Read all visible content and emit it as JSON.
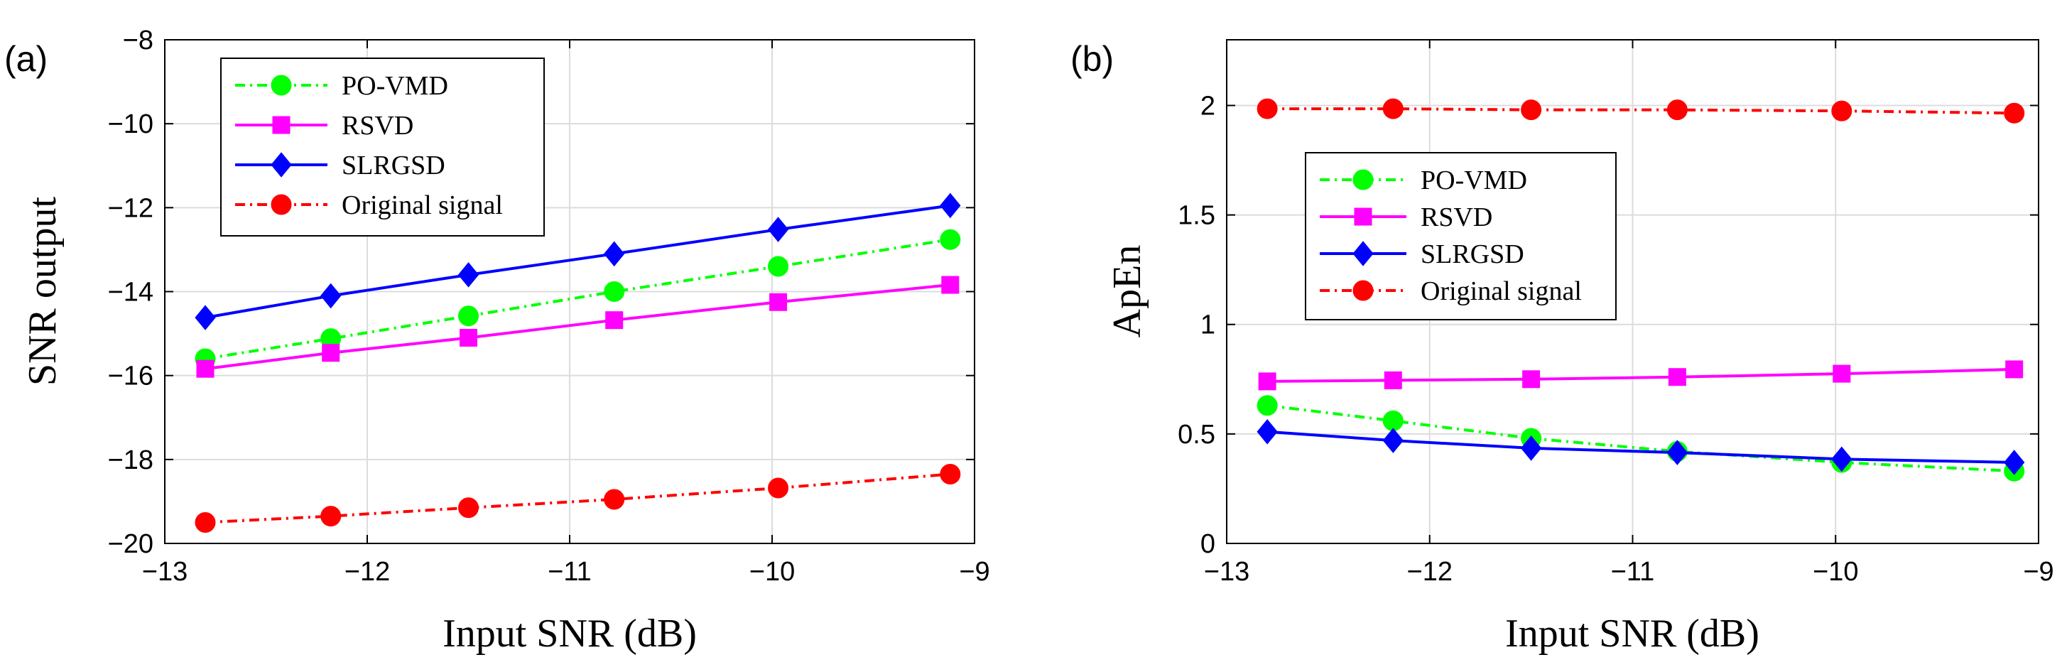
{
  "chart_data": [
    {
      "type": "line",
      "panel_label": "(a)",
      "title": "",
      "xlabel": "Input SNR (dB)",
      "ylabel": "SNR output",
      "xlim": [
        -13,
        -9
      ],
      "ylim": [
        -20,
        -8
      ],
      "xticks": [
        -13,
        -12,
        -11,
        -10,
        -9
      ],
      "yticks": [
        -20,
        -18,
        -16,
        -14,
        -12,
        -10,
        -8
      ],
      "grid": true,
      "legend_position": "top-left",
      "x": [
        -12.8,
        -12.18,
        -11.5,
        -10.78,
        -9.97,
        -9.12
      ],
      "series": [
        {
          "name": "PO-VMD",
          "color": "#00ff00",
          "dash": "dashdot",
          "marker": "circle",
          "values": [
            -15.6,
            -15.12,
            -14.58,
            -14.0,
            -13.4,
            -12.76
          ]
        },
        {
          "name": "RSVD",
          "color": "#ff00ff",
          "dash": "solid",
          "marker": "square",
          "values": [
            -15.84,
            -15.46,
            -15.1,
            -14.68,
            -14.25,
            -13.84
          ]
        },
        {
          "name": "SLRGSD",
          "color": "#0000ff",
          "dash": "solid",
          "marker": "diamond",
          "values": [
            -14.62,
            -14.1,
            -13.6,
            -13.1,
            -12.52,
            -11.95
          ]
        },
        {
          "name": "Original signal",
          "color": "#ff0000",
          "dash": "dashdot",
          "marker": "circle",
          "values": [
            -19.5,
            -19.35,
            -19.15,
            -18.95,
            -18.68,
            -18.35
          ]
        }
      ]
    },
    {
      "type": "line",
      "panel_label": "(b)",
      "title": "",
      "xlabel": "Input SNR (dB)",
      "ylabel": "ApEn",
      "xlim": [
        -13,
        -9
      ],
      "ylim": [
        0,
        2.3
      ],
      "xticks": [
        -13,
        -12,
        -11,
        -10,
        -9
      ],
      "yticks": [
        0,
        0.5,
        1,
        1.5,
        2
      ],
      "grid": true,
      "legend_position": "center-left",
      "x": [
        -12.8,
        -12.18,
        -11.5,
        -10.78,
        -9.97,
        -9.12
      ],
      "series": [
        {
          "name": "PO-VMD",
          "color": "#00ff00",
          "dash": "dashdot",
          "marker": "circle",
          "values": [
            0.63,
            0.56,
            0.48,
            0.42,
            0.37,
            0.33
          ]
        },
        {
          "name": "RSVD",
          "color": "#ff00ff",
          "dash": "solid",
          "marker": "square",
          "values": [
            0.74,
            0.745,
            0.75,
            0.76,
            0.775,
            0.795
          ]
        },
        {
          "name": "SLRGSD",
          "color": "#0000ff",
          "dash": "solid",
          "marker": "diamond",
          "values": [
            0.51,
            0.47,
            0.435,
            0.415,
            0.385,
            0.37
          ]
        },
        {
          "name": "Original signal",
          "color": "#ff0000",
          "dash": "dashdot",
          "marker": "circle",
          "values": [
            1.985,
            1.985,
            1.98,
            1.98,
            1.975,
            1.965
          ]
        }
      ]
    }
  ]
}
